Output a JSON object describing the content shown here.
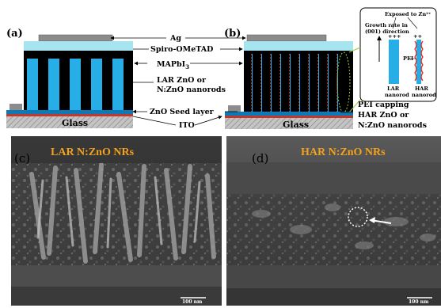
{
  "labels": {
    "a": "(a)",
    "b": "(b)",
    "c": "(c)",
    "d": "(d)",
    "ag": "Ag",
    "spiro": "Spiro-OMeTAD",
    "mapbi": "MAPbI",
    "mapbi_sub": "3",
    "lar_line1": "LAR ZnO or",
    "lar_line2": "N:ZnO nanorods",
    "seed": "ZnO Seed layer",
    "ito": "ITO",
    "glass_a": "Glass",
    "glass_b": "Glass",
    "pei": "PEI capping",
    "har_line1": "HAR ZnO or",
    "har_line2": "N:ZnO nanorods",
    "inset_exposed": "Exposed to Zn²⁺",
    "inset_growth1": "Growth rate in",
    "inset_growth2": "(001) direction",
    "inset_pei": "PEI",
    "inset_lar1": "LAR",
    "inset_lar2": "nanorod",
    "inset_har1": "HAR",
    "inset_har2": "nanorod",
    "sem_c_title": "LAR N:ZnO NRs",
    "sem_d_title": "HAR N:ZnO NRs",
    "scale_c": "100 nm",
    "scale_d": "100 nm"
  },
  "colors": {
    "ag": "#8c8c8c",
    "spiro": "#a6e4ef",
    "perovskite": "#000000",
    "nanorod": "#27aee6",
    "seed": "#0d79b6",
    "ito": "#c0392b",
    "glass": "#b8b8b8",
    "sem_title": "#f4a21c"
  }
}
